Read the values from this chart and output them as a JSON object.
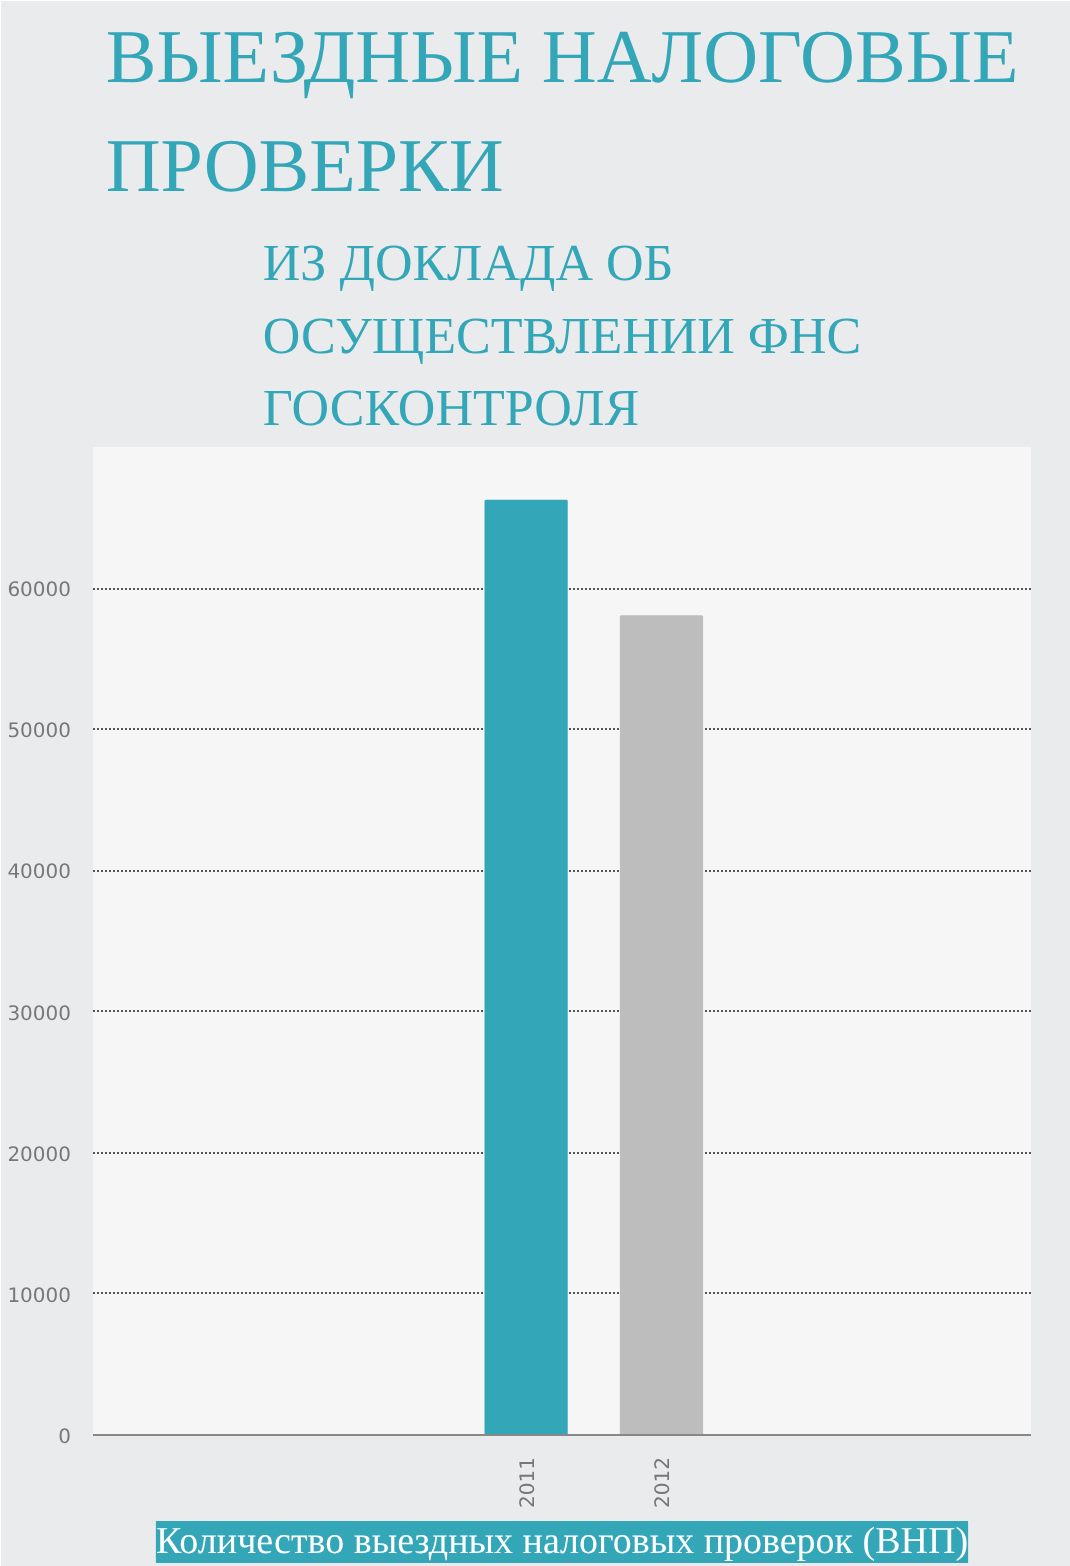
{
  "chart_data": {
    "type": "bar",
    "title": "ВЫЕЗДНЫЕ НАЛОГОВЫЕ ПРОВЕРКИ",
    "subtitle": "ИЗ ДОКЛАДА ОБ ОСУЩЕСТВЛЕНИИ ФНС ГОСКОНТРОЛЯ",
    "xlabel": "Количество выездных налоговых проверок (ВНП)",
    "categories": [
      "2011",
      "2012"
    ],
    "values": [
      66200,
      58000
    ],
    "colors": [
      "#33a6b8",
      "#bdbdbd"
    ],
    "ylim": [
      0,
      70000
    ],
    "yticks": [
      0,
      10000,
      20000,
      30000,
      40000,
      50000,
      60000
    ],
    "grid": "y"
  }
}
